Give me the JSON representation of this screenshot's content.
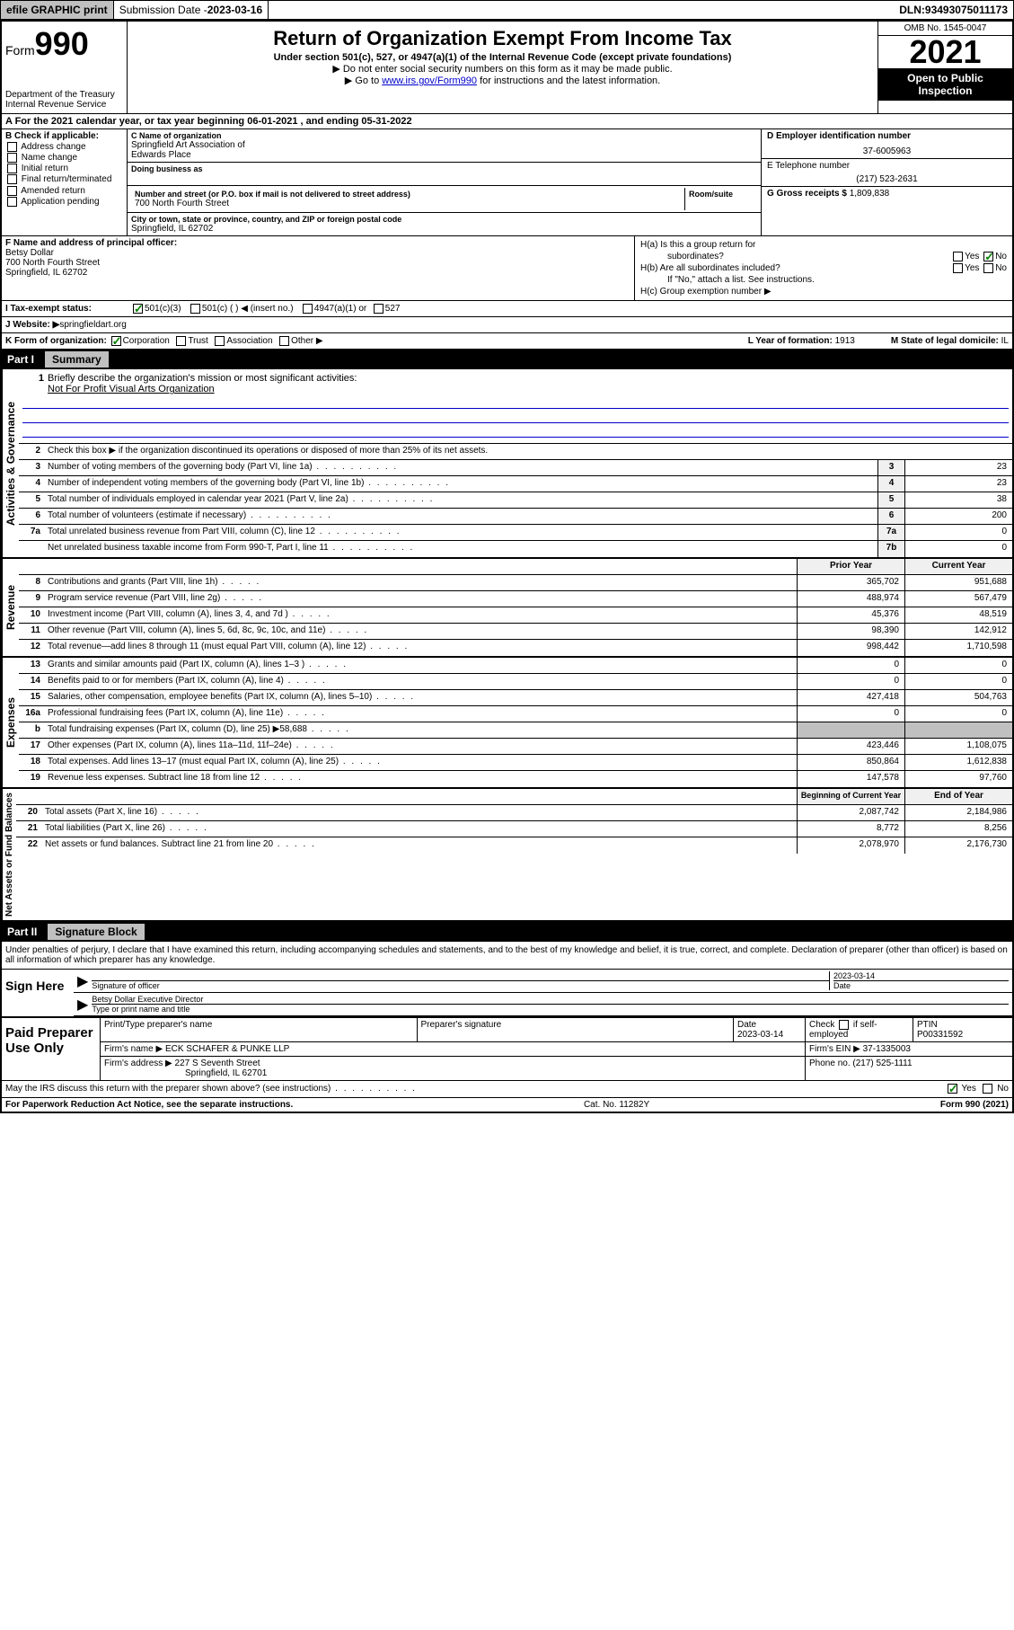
{
  "topbar": {
    "efile": "efile GRAPHIC print",
    "submission_label": "Submission Date - ",
    "submission_date": "2023-03-16",
    "dln_label": "DLN: ",
    "dln": "93493075011173"
  },
  "header": {
    "form_prefix": "Form",
    "form_number": "990",
    "dept": "Department of the Treasury",
    "irs": "Internal Revenue Service",
    "title": "Return of Organization Exempt From Income Tax",
    "subtitle": "Under section 501(c), 527, or 4947(a)(1) of the Internal Revenue Code (except private foundations)",
    "note1": "▶ Do not enter social security numbers on this form as it may be made public.",
    "note2_pre": "▶ Go to ",
    "note2_link": "www.irs.gov/Form990",
    "note2_post": " for instructions and the latest information.",
    "omb": "OMB No. 1545-0047",
    "year": "2021",
    "open_public": "Open to Public Inspection"
  },
  "row_a": {
    "text_pre": "A For the 2021 calendar year, or tax year beginning ",
    "begin": "06-01-2021",
    "mid": " , and ending ",
    "end": "05-31-2022"
  },
  "col_b": {
    "header": "B Check if applicable:",
    "items": [
      "Address change",
      "Name change",
      "Initial return",
      "Final return/terminated",
      "Amended return",
      "Application pending"
    ]
  },
  "col_c": {
    "name_label": "C Name of organization",
    "name1": "Springfield Art Association of",
    "name2": "Edwards Place",
    "dba_label": "Doing business as",
    "street_label": "Number and street (or P.O. box if mail is not delivered to street address)",
    "street": "700 North Fourth Street",
    "suite_label": "Room/suite",
    "city_label": "City or town, state or province, country, and ZIP or foreign postal code",
    "city": "Springfield, IL  62702"
  },
  "col_d": {
    "label": "D Employer identification number",
    "value": "37-6005963"
  },
  "col_e": {
    "label": "E Telephone number",
    "value": "(217) 523-2631"
  },
  "col_g": {
    "label": "G Gross receipts $ ",
    "value": "1,809,838"
  },
  "col_f": {
    "label": "F Name and address of principal officer:",
    "name": "Betsy Dollar",
    "street": "700 North Fourth Street",
    "city": "Springfield, IL  62702"
  },
  "col_h": {
    "ha_label": "H(a)  Is this a group return for",
    "ha_sub": "subordinates?",
    "hb_label": "H(b)  Are all subordinates included?",
    "hb_note": "If \"No,\" attach a list. See instructions.",
    "hc_label": "H(c)  Group exemption number ▶",
    "yes": "Yes",
    "no": "No"
  },
  "row_i": {
    "label": "I   Tax-exempt status:",
    "opts": [
      "501(c)(3)",
      "501(c) (   ) ◀ (insert no.)",
      "4947(a)(1) or",
      "527"
    ]
  },
  "row_j": {
    "label": "J   Website: ▶ ",
    "value": "springfieldart.org"
  },
  "row_k": {
    "label": "K Form of organization:",
    "opts": [
      "Corporation",
      "Trust",
      "Association",
      "Other ▶"
    ],
    "l_label": "L Year of formation: ",
    "l_value": "1913",
    "m_label": "M State of legal domicile: ",
    "m_value": "IL"
  },
  "part1": {
    "num": "Part I",
    "title": "Summary"
  },
  "summary": {
    "q1": "Briefly describe the organization's mission or most significant activities:",
    "q1_ans": "Not For Profit Visual Arts Organization",
    "q2": "Check this box ▶        if the organization discontinued its operations or disposed of more than 25% of its net assets.",
    "sections": {
      "gov": "Activities & Governance",
      "rev": "Revenue",
      "exp": "Expenses",
      "net": "Net Assets or Fund Balances"
    },
    "rows_gov": [
      {
        "n": "3",
        "d": "Number of voting members of the governing body (Part VI, line 1a)",
        "b": "3",
        "v": "23"
      },
      {
        "n": "4",
        "d": "Number of independent voting members of the governing body (Part VI, line 1b)",
        "b": "4",
        "v": "23"
      },
      {
        "n": "5",
        "d": "Total number of individuals employed in calendar year 2021 (Part V, line 2a)",
        "b": "5",
        "v": "38"
      },
      {
        "n": "6",
        "d": "Total number of volunteers (estimate if necessary)",
        "b": "6",
        "v": "200"
      },
      {
        "n": "7a",
        "d": "Total unrelated business revenue from Part VIII, column (C), line 12",
        "b": "7a",
        "v": "0"
      },
      {
        "n": "",
        "d": "Net unrelated business taxable income from Form 990-T, Part I, line 11",
        "b": "7b",
        "v": "0"
      }
    ],
    "head_prior": "Prior Year",
    "head_current": "Current Year",
    "rows_rev": [
      {
        "n": "8",
        "d": "Contributions and grants (Part VIII, line 1h)",
        "p": "365,702",
        "c": "951,688"
      },
      {
        "n": "9",
        "d": "Program service revenue (Part VIII, line 2g)",
        "p": "488,974",
        "c": "567,479"
      },
      {
        "n": "10",
        "d": "Investment income (Part VIII, column (A), lines 3, 4, and 7d )",
        "p": "45,376",
        "c": "48,519"
      },
      {
        "n": "11",
        "d": "Other revenue (Part VIII, column (A), lines 5, 6d, 8c, 9c, 10c, and 11e)",
        "p": "98,390",
        "c": "142,912"
      },
      {
        "n": "12",
        "d": "Total revenue—add lines 8 through 11 (must equal Part VIII, column (A), line 12)",
        "p": "998,442",
        "c": "1,710,598"
      }
    ],
    "rows_exp": [
      {
        "n": "13",
        "d": "Grants and similar amounts paid (Part IX, column (A), lines 1–3 )",
        "p": "0",
        "c": "0"
      },
      {
        "n": "14",
        "d": "Benefits paid to or for members (Part IX, column (A), line 4)",
        "p": "0",
        "c": "0"
      },
      {
        "n": "15",
        "d": "Salaries, other compensation, employee benefits (Part IX, column (A), lines 5–10)",
        "p": "427,418",
        "c": "504,763"
      },
      {
        "n": "16a",
        "d": "Professional fundraising fees (Part IX, column (A), line 11e)",
        "p": "0",
        "c": "0"
      },
      {
        "n": "b",
        "d": "Total fundraising expenses (Part IX, column (D), line 25) ▶58,688",
        "p": "",
        "c": "",
        "grey": true
      },
      {
        "n": "17",
        "d": "Other expenses (Part IX, column (A), lines 11a–11d, 11f–24e)",
        "p": "423,446",
        "c": "1,108,075"
      },
      {
        "n": "18",
        "d": "Total expenses. Add lines 13–17 (must equal Part IX, column (A), line 25)",
        "p": "850,864",
        "c": "1,612,838"
      },
      {
        "n": "19",
        "d": "Revenue less expenses. Subtract line 18 from line 12",
        "p": "147,578",
        "c": "97,760"
      }
    ],
    "head_begin": "Beginning of Current Year",
    "head_end": "End of Year",
    "rows_net": [
      {
        "n": "20",
        "d": "Total assets (Part X, line 16)",
        "p": "2,087,742",
        "c": "2,184,986"
      },
      {
        "n": "21",
        "d": "Total liabilities (Part X, line 26)",
        "p": "8,772",
        "c": "8,256"
      },
      {
        "n": "22",
        "d": "Net assets or fund balances. Subtract line 21 from line 20",
        "p": "2,078,970",
        "c": "2,176,730"
      }
    ]
  },
  "part2": {
    "num": "Part II",
    "title": "Signature Block"
  },
  "sig": {
    "intro": "Under penalties of perjury, I declare that I have examined this return, including accompanying schedules and statements, and to the best of my knowledge and belief, it is true, correct, and complete. Declaration of preparer (other than officer) is based on all information of which preparer has any knowledge.",
    "sign_here": "Sign Here",
    "sig_officer": "Signature of officer",
    "date_label": "Date",
    "date": "2023-03-14",
    "name_title": "Betsy Dollar  Executive Director",
    "type_label": "Type or print name and title"
  },
  "prep": {
    "label": "Paid Preparer Use Only",
    "h_name": "Print/Type preparer's name",
    "h_sig": "Preparer's signature",
    "h_date": "Date",
    "date": "2023-03-14",
    "check_label": "Check         if self-employed",
    "ptin_label": "PTIN",
    "ptin": "P00331592",
    "firm_name_label": "Firm's name     ▶ ",
    "firm_name": "ECK SCHAFER & PUNKE LLP",
    "firm_ein_label": "Firm's EIN ▶ ",
    "firm_ein": "37-1335003",
    "firm_addr_label": "Firm's address ▶ ",
    "firm_addr1": "227 S Seventh Street",
    "firm_addr2": "Springfield, IL  62701",
    "phone_label": "Phone no. ",
    "phone": "(217) 525-1111"
  },
  "footer": {
    "discuss": "May the IRS discuss this return with the preparer shown above? (see instructions)",
    "yes": "Yes",
    "no": "No",
    "paperwork": "For Paperwork Reduction Act Notice, see the separate instructions.",
    "cat": "Cat. No. 11282Y",
    "form": "Form 990 (2021)"
  }
}
